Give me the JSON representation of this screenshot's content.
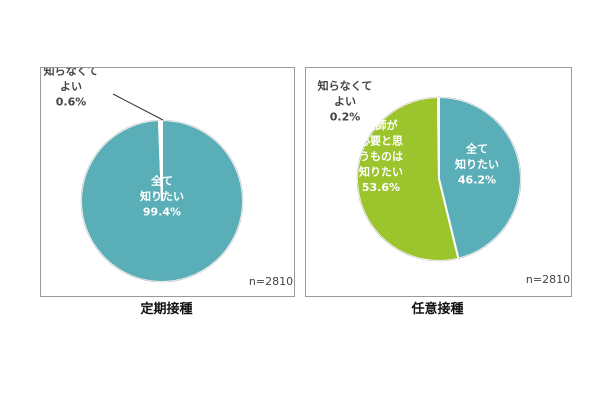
{
  "colors": {
    "teal": "#5aaeb8",
    "green": "#9cc42d",
    "white": "#ffffff",
    "label_dark": "#444444",
    "label_light": "#ffffff"
  },
  "chart_data": [
    {
      "type": "pie",
      "caption": "定期接種",
      "sample_size": "n=2810",
      "slices": [
        {
          "label_lines": [
            "全て",
            "知りたい"
          ],
          "value": 99.4,
          "value_text": "99.4%",
          "color": "#5aaeb8"
        },
        {
          "label_lines": [
            "知らなくて",
            "よい"
          ],
          "value": 0.6,
          "value_text": "0.6%",
          "color": "#ffffff"
        }
      ]
    },
    {
      "type": "pie",
      "caption": "任意接種",
      "sample_size": "n=2810",
      "slices": [
        {
          "label_lines": [
            "全て",
            "知りたい"
          ],
          "value": 46.2,
          "value_text": "46.2%",
          "color": "#5aaeb8"
        },
        {
          "label_lines": [
            "医師が",
            "必要と思",
            "うものは",
            "知りたい"
          ],
          "value": 53.6,
          "value_text": "53.6%",
          "color": "#9cc42d"
        },
        {
          "label_lines": [
            "知らなくて",
            "よい"
          ],
          "value": 0.2,
          "value_text": "0.2%",
          "color": "#ffffff"
        }
      ]
    }
  ]
}
